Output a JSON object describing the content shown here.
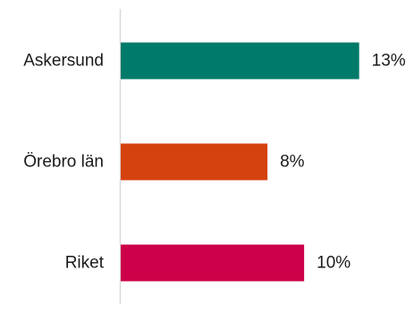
{
  "chart_data": {
    "type": "bar",
    "orientation": "horizontal",
    "categories": [
      "Askersund",
      "Örebro län",
      "Riket"
    ],
    "values": [
      13,
      8,
      10
    ],
    "value_labels": [
      "13%",
      "8%",
      "10%"
    ],
    "unit": "%",
    "colors": [
      "#007a6a",
      "#d4420f",
      "#cc0048"
    ],
    "xlim": [
      0,
      19.5
    ],
    "title": "",
    "xlabel": "",
    "ylabel": "",
    "grid": false,
    "legend": "none"
  }
}
